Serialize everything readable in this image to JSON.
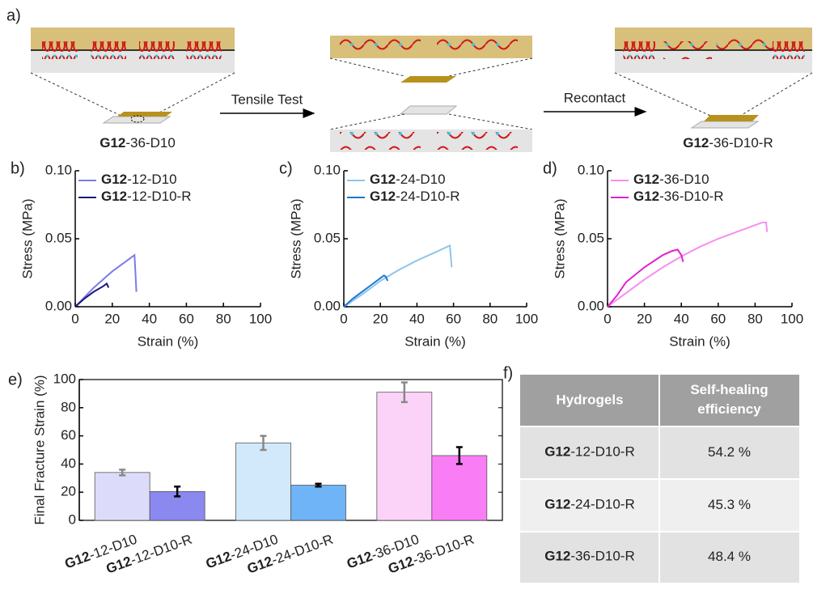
{
  "panel_labels": [
    "a)",
    "e)",
    "f)"
  ],
  "schematic": {
    "step1": "Tensile Test",
    "step2": "Recontact",
    "start_label": "G12-36-D10",
    "end_label": "G12-36-D10-R"
  },
  "chart_data": [
    {
      "type": "line",
      "panel": "b)",
      "xlabel": "Strain (%)",
      "ylabel": "Stress (MPa)",
      "xlim": [
        0,
        100
      ],
      "xticks": [
        0,
        20,
        40,
        60,
        80,
        100
      ],
      "ylim": [
        0,
        0.1
      ],
      "yticks": [
        {
          "value": 0,
          "label": "0.00"
        },
        {
          "value": 0.05,
          "label": "0.05"
        },
        {
          "value": 0.1,
          "label": "0.10"
        }
      ],
      "series": [
        {
          "name": "G12-12-D10",
          "color": "#7b7be8",
          "x": [
            0,
            5,
            10,
            15,
            20,
            25,
            30,
            32,
            32.5,
            33
          ],
          "values": [
            0,
            0.007,
            0.014,
            0.02,
            0.026,
            0.031,
            0.036,
            0.038,
            0.025,
            0.011
          ]
        },
        {
          "name": "G12-12-D10-R",
          "color": "#1a1a7a",
          "x": [
            0,
            5,
            10,
            15,
            17,
            18
          ],
          "values": [
            0,
            0.006,
            0.011,
            0.015,
            0.017,
            0.014
          ]
        }
      ]
    },
    {
      "type": "line",
      "panel": "c)",
      "xlabel": "Strain (%)",
      "ylabel": "Stress (MPa)",
      "xlim": [
        0,
        100
      ],
      "xticks": [
        0,
        20,
        40,
        60,
        80,
        100
      ],
      "ylim": [
        0,
        0.1
      ],
      "yticks": [
        {
          "value": 0,
          "label": "0.00"
        },
        {
          "value": 0.05,
          "label": "0.05"
        },
        {
          "value": 0.1,
          "label": "0.10"
        }
      ],
      "series": [
        {
          "name": "G12-24-D10",
          "color": "#8ec5ec",
          "x": [
            0,
            10,
            20,
            30,
            40,
            50,
            58,
            58.5,
            59
          ],
          "values": [
            0,
            0.009,
            0.019,
            0.027,
            0.034,
            0.04,
            0.045,
            0.037,
            0.029
          ]
        },
        {
          "name": "G12-24-D10-R",
          "color": "#1e78d0",
          "x": [
            0,
            5,
            10,
            15,
            20,
            22,
            23,
            24
          ],
          "values": [
            0,
            0.006,
            0.011,
            0.016,
            0.021,
            0.023,
            0.022,
            0.019
          ]
        }
      ]
    },
    {
      "type": "line",
      "panel": "d)",
      "xlabel": "Strain (%)",
      "ylabel": "Stress (MPa)",
      "xlim": [
        0,
        100
      ],
      "xticks": [
        0,
        20,
        40,
        60,
        80,
        100
      ],
      "ylim": [
        0,
        0.1
      ],
      "yticks": [
        {
          "value": 0,
          "label": "0.00"
        },
        {
          "value": 0.05,
          "label": "0.05"
        },
        {
          "value": 0.1,
          "label": "0.10"
        }
      ],
      "series": [
        {
          "name": "G12-36-D10",
          "color": "#f78ef0",
          "x": [
            0,
            10,
            20,
            30,
            40,
            50,
            60,
            70,
            80,
            84,
            86,
            86.5
          ],
          "values": [
            0,
            0.01,
            0.02,
            0.029,
            0.037,
            0.044,
            0.05,
            0.055,
            0.06,
            0.062,
            0.062,
            0.055
          ]
        },
        {
          "name": "G12-36-D10-R",
          "color": "#e020d0",
          "x": [
            0,
            5,
            10,
            20,
            30,
            35,
            38,
            40,
            41
          ],
          "values": [
            0,
            0.008,
            0.018,
            0.029,
            0.038,
            0.041,
            0.042,
            0.038,
            0.033
          ]
        }
      ]
    },
    {
      "type": "bar",
      "ylabel": "Final Fracture Strain (%)",
      "categories": [
        "G12-12-D10",
        "G12-12-D10-R",
        "G12-24-D10",
        "G12-24-D10-R",
        "G12-36-D10",
        "G12-36-D10-R"
      ],
      "values": [
        34,
        20.5,
        55,
        25,
        91,
        46
      ],
      "errors": [
        2,
        3.5,
        5,
        1,
        7,
        6
      ],
      "colors": [
        "#dcdcfa",
        "#8b88f0",
        "#d2e9fb",
        "#6fb4f7",
        "#fbd3f8",
        "#f97ef5"
      ],
      "error_colors": [
        "#888888",
        "#000000",
        "#888888",
        "#000000",
        "#888888",
        "#000000"
      ],
      "ylim": [
        0,
        100
      ],
      "yticks": [
        0,
        20,
        40,
        60,
        80,
        100
      ]
    }
  ],
  "table": {
    "header": [
      "Hydrogels",
      "Self-healing efficiency"
    ],
    "rows": [
      [
        "G12-12-D10-R",
        "54.2 %"
      ],
      [
        "G12-24-D10-R",
        "45.3 %"
      ],
      [
        "G12-36-D10-R",
        "48.4 %"
      ]
    ]
  }
}
